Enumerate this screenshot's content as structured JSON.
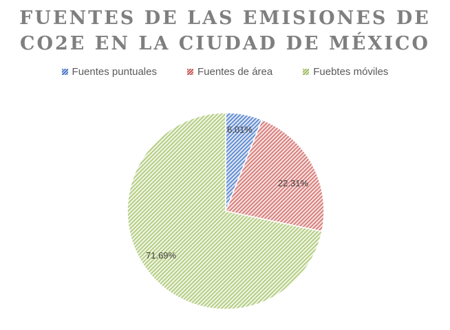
{
  "chart_data": {
    "type": "pie",
    "title": "FUENTES DE LAS EMISIONES DE CO2E EN LA CIUDAD DE MÉXICO",
    "title_lines": [
      "FUENTES DE LAS EMISIONES DE",
      "CO2E EN LA CIUDAD DE MÉXICO"
    ],
    "categories": [
      "Fuentes puntuales",
      "Fuentes de área",
      "Fuebtes móviles"
    ],
    "values": [
      6.01,
      22.31,
      71.69
    ],
    "labels": [
      "6.01%",
      "22.31%",
      "71.69%"
    ],
    "colors": [
      "#4472c4",
      "#c0504d",
      "#9bbb59"
    ],
    "fill_style": "diagonal-hatch",
    "legend_position": "top",
    "start_angle_deg": 0,
    "direction": "clockwise"
  },
  "legend": {
    "items": [
      {
        "label": "Fuentes puntuales",
        "color": "#4472c4"
      },
      {
        "label": "Fuentes de área",
        "color": "#c0504d"
      },
      {
        "label": "Fuebtes móviles",
        "color": "#9bbb59"
      }
    ]
  }
}
